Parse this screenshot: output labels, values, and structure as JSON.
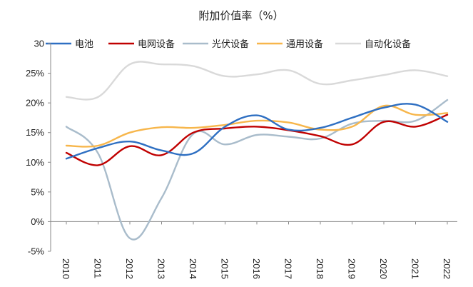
{
  "chart_data": {
    "type": "line",
    "title": "附加价值率（%）",
    "xlabel": "",
    "ylabel": "",
    "categories": [
      "2010",
      "2011",
      "2012",
      "2013",
      "2014",
      "2015",
      "2016",
      "2017",
      "2018",
      "2019",
      "2020",
      "2021",
      "2022"
    ],
    "ylim": [
      -5,
      30
    ],
    "yticks": [
      -5,
      0,
      5,
      10,
      15,
      20,
      25,
      30
    ],
    "ytick_labels": [
      "-5%",
      "0%",
      "5%",
      "10%",
      "15%",
      "20%",
      "25%",
      "30"
    ],
    "grid": false,
    "legend_position": "top",
    "series": [
      {
        "name": "电池",
        "color": "#2E6FC2",
        "values": [
          10.6,
          12.4,
          13.5,
          12.0,
          11.5,
          16.0,
          17.9,
          15.5,
          15.8,
          17.5,
          19.2,
          19.7,
          16.8
        ]
      },
      {
        "name": "电网设备",
        "color": "#C00000",
        "values": [
          11.6,
          9.5,
          12.7,
          11.2,
          15.0,
          15.7,
          16.0,
          15.4,
          14.4,
          13.0,
          16.8,
          16.0,
          18.0
        ]
      },
      {
        "name": "光伏设备",
        "color": "#A9BCCB",
        "values": [
          16.0,
          11.5,
          -2.8,
          4.0,
          14.8,
          13.0,
          14.6,
          14.3,
          14.0,
          16.5,
          17.0,
          17.0,
          20.5
        ]
      },
      {
        "name": "通用设备",
        "color": "#F7B64B",
        "values": [
          12.8,
          12.8,
          15.0,
          15.9,
          15.8,
          16.3,
          17.0,
          16.7,
          15.5,
          16.0,
          19.5,
          18.0,
          18.3
        ]
      },
      {
        "name": "自动化设备",
        "color": "#D9D9D9",
        "values": [
          21.0,
          21.0,
          26.5,
          26.5,
          26.2,
          24.5,
          24.8,
          25.5,
          23.2,
          23.8,
          24.7,
          25.5,
          24.5
        ]
      }
    ]
  }
}
